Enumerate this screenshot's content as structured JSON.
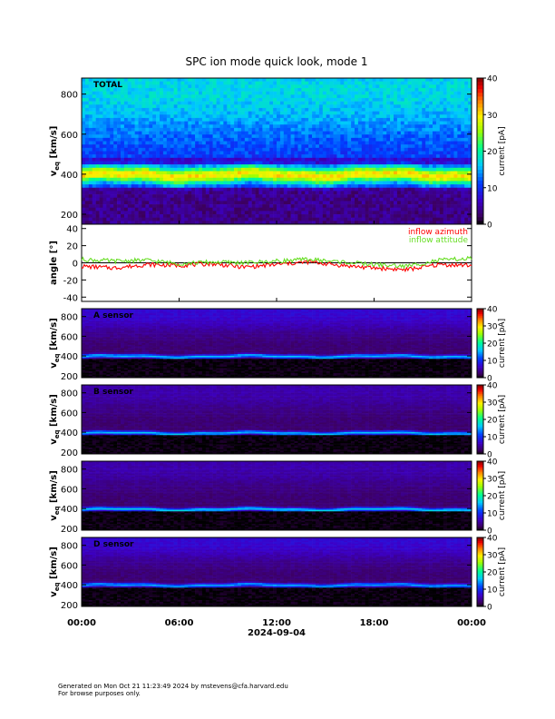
{
  "title": "SPC ion mode quick look, mode 1",
  "date_label": "2024-09-04",
  "footer": {
    "line1": "Generated on Mon Oct 21 11:23:49 2024 by mstevens@cfa.harvard.edu",
    "line2": "For browse purposes only."
  },
  "colors": {
    "azimuth": "#ff0000",
    "attitude": "#66dd22",
    "zero_line": "#000000"
  },
  "chart_data": [
    {
      "type": "heatmap",
      "panel_label": "TOTAL",
      "ylabel": "v_eq [km/s]",
      "ylim": [
        150,
        880
      ],
      "yticks": [
        200,
        400,
        600,
        800
      ],
      "xticks": [
        "00:00",
        "06:00",
        "12:00",
        "18:00",
        "00:00"
      ],
      "colorbar": {
        "label": "current [pA]",
        "range": [
          0,
          40
        ],
        "ticks": [
          0,
          10,
          20,
          30,
          40
        ]
      },
      "profile": {
        "peak_kms": 395,
        "peak_pA": 30,
        "dark_band_kms": [
          455,
          480
        ]
      }
    },
    {
      "type": "line",
      "ylabel": "angle [°]",
      "ylim": [
        -45,
        45
      ],
      "yticks": [
        -40,
        -20,
        0,
        20,
        40
      ],
      "x_hours": [
        0,
        2,
        4,
        6,
        8,
        10,
        12,
        14,
        16,
        18,
        20,
        22,
        24
      ],
      "series": [
        {
          "name": "inflow azimuth",
          "values": [
            -4,
            -6,
            -2,
            -3,
            -1,
            -5,
            -2,
            1,
            -3,
            -6,
            -8,
            -2,
            -3
          ]
        },
        {
          "name": "inflow attitude",
          "values": [
            4,
            2,
            3,
            -1,
            1,
            0,
            2,
            4,
            1,
            -2,
            -4,
            3,
            5
          ]
        }
      ]
    },
    {
      "type": "heatmap",
      "panel_label": "A sensor",
      "ylabel": "v_eq [km/s]",
      "ylim": [
        180,
        880
      ],
      "yticks": [
        200,
        400,
        600,
        800
      ],
      "colorbar": {
        "label": "current [pA]",
        "range": [
          0,
          40
        ],
        "ticks": [
          0,
          10,
          20,
          30,
          40
        ]
      },
      "profile": {
        "peak_kms": 395,
        "peak_pA": 14
      }
    },
    {
      "type": "heatmap",
      "panel_label": "B sensor",
      "ylabel": "v_eq [km/s]",
      "ylim": [
        180,
        880
      ],
      "yticks": [
        200,
        400,
        600,
        800
      ],
      "colorbar": {
        "label": "current [pA]",
        "range": [
          0,
          40
        ],
        "ticks": [
          0,
          10,
          20,
          30,
          40
        ]
      },
      "profile": {
        "peak_kms": 390,
        "peak_pA": 14
      }
    },
    {
      "type": "heatmap",
      "panel_label": "",
      "ylabel": "v_eq [km/s]",
      "ylim": [
        180,
        880
      ],
      "yticks": [
        200,
        400,
        600,
        800
      ],
      "colorbar": {
        "label": "current [pA]",
        "range": [
          0,
          40
        ],
        "ticks": [
          0,
          10,
          20,
          30,
          40
        ]
      },
      "profile": {
        "peak_kms": 390,
        "peak_pA": 15
      }
    },
    {
      "type": "heatmap",
      "panel_label": "D sensor",
      "ylabel": "v_eq [km/s]",
      "ylim": [
        180,
        880
      ],
      "yticks": [
        200,
        400,
        600,
        800
      ],
      "colorbar": {
        "label": "current [pA]",
        "range": [
          0,
          40
        ],
        "ticks": [
          0,
          10,
          20,
          30,
          40
        ]
      },
      "profile": {
        "peak_kms": 395,
        "peak_pA": 13
      }
    }
  ]
}
